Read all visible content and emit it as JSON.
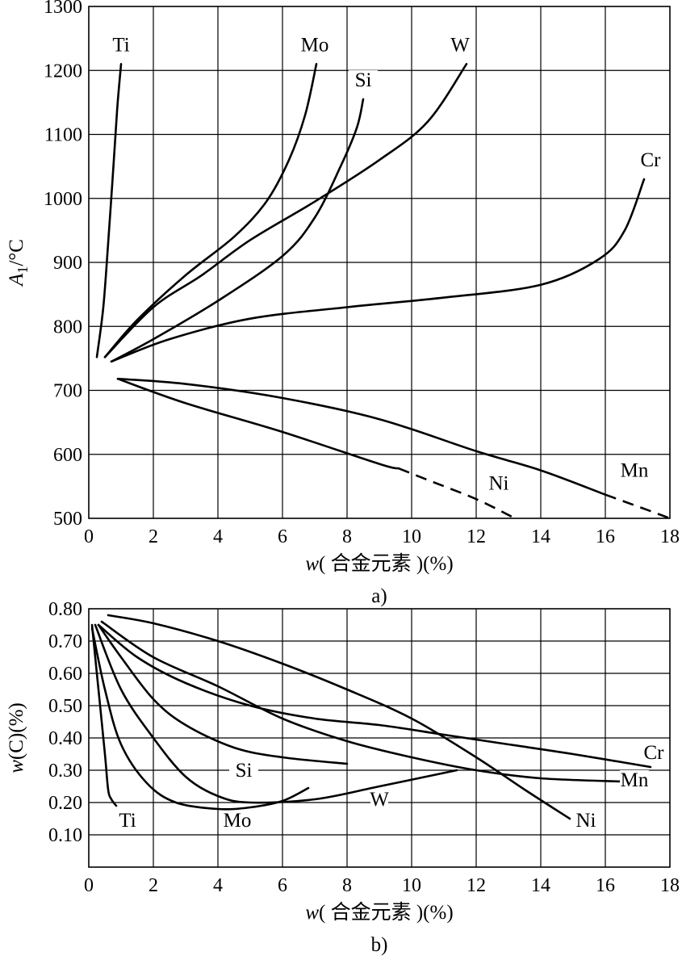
{
  "chart_data": [
    {
      "type": "line",
      "panel": "a)",
      "caption": "a)",
      "xlabel": "w( 合金元素 )(%)",
      "xlabel_var": "w",
      "xlabel_text": "( 合金元素 )(%)",
      "ylabel": "A1/°C",
      "ylabel_var": "A",
      "ylabel_sub": "1",
      "ylabel_unit": "/°C",
      "xlim": [
        0,
        18
      ],
      "ylim": [
        500,
        1300
      ],
      "x_ticks": [
        0,
        2,
        4,
        6,
        8,
        10,
        12,
        14,
        16,
        18
      ],
      "y_ticks": [
        500,
        600,
        700,
        800,
        900,
        1000,
        1100,
        1200,
        1300
      ],
      "grid": true,
      "series": [
        {
          "name": "Ti",
          "points": [
            [
              0.25,
              752
            ],
            [
              0.45,
              830
            ],
            [
              0.6,
              930
            ],
            [
              0.75,
              1040
            ],
            [
              0.88,
              1140
            ],
            [
              1.0,
              1210
            ]
          ]
        },
        {
          "name": "Mo",
          "points": [
            [
              0.5,
              752
            ],
            [
              1.5,
              810
            ],
            [
              3.0,
              880
            ],
            [
              4.5,
              940
            ],
            [
              5.5,
              995
            ],
            [
              6.2,
              1060
            ],
            [
              6.7,
              1130
            ],
            [
              7.05,
              1210
            ]
          ]
        },
        {
          "name": "Si",
          "points": [
            [
              0.7,
              745
            ],
            [
              2.0,
              780
            ],
            [
              4.0,
              840
            ],
            [
              6.0,
              910
            ],
            [
              7.0,
              970
            ],
            [
              7.8,
              1050
            ],
            [
              8.3,
              1110
            ],
            [
              8.5,
              1155
            ]
          ]
        },
        {
          "name": "W",
          "points": [
            [
              0.5,
              752
            ],
            [
              2.0,
              830
            ],
            [
              3.5,
              880
            ],
            [
              5.0,
              935
            ],
            [
              7.0,
              995
            ],
            [
              9.0,
              1060
            ],
            [
              10.5,
              1120
            ],
            [
              11.7,
              1210
            ]
          ]
        },
        {
          "name": "Cr",
          "points": [
            [
              0.7,
              745
            ],
            [
              2.5,
              780
            ],
            [
              5.0,
              812
            ],
            [
              8.0,
              830
            ],
            [
              11.0,
              845
            ],
            [
              14.0,
              865
            ],
            [
              15.8,
              905
            ],
            [
              16.6,
              950
            ],
            [
              17.2,
              1030
            ]
          ]
        },
        {
          "name": "Mn",
          "points": [
            [
              0.9,
              718
            ],
            [
              3.0,
              710
            ],
            [
              6.0,
              688
            ],
            [
              9.0,
              655
            ],
            [
              12.0,
              605
            ],
            [
              14.0,
              575
            ],
            [
              16.0,
              537
            ]
          ],
          "dashed_points": [
            [
              16.0,
              537
            ],
            [
              17.2,
              515
            ],
            [
              18.0,
              500
            ]
          ]
        },
        {
          "name": "Ni",
          "points": [
            [
              0.9,
              718
            ],
            [
              3.0,
              680
            ],
            [
              6.0,
              635
            ],
            [
              9.0,
              585
            ],
            [
              9.6,
              578
            ]
          ],
          "dashed_points": [
            [
              9.6,
              578
            ],
            [
              10.5,
              560
            ],
            [
              12.0,
              530
            ],
            [
              13.2,
              500
            ]
          ]
        }
      ],
      "annotations": [
        {
          "text": "Ti",
          "x": 1.0,
          "y": 1230
        },
        {
          "text": "Mo",
          "x": 7.0,
          "y": 1230
        },
        {
          "text": "Si",
          "x": 8.5,
          "y": 1175
        },
        {
          "text": "W",
          "x": 11.5,
          "y": 1230
        },
        {
          "text": "Cr",
          "x": 17.4,
          "y": 1050
        },
        {
          "text": "Ni",
          "x": 12.7,
          "y": 545
        },
        {
          "text": "Mn",
          "x": 16.9,
          "y": 565
        }
      ]
    },
    {
      "type": "line",
      "panel": "b)",
      "caption": "b)",
      "xlabel": "w( 合金元素 )(%)",
      "xlabel_var": "w",
      "xlabel_text": "( 合金元素 )(%)",
      "ylabel": "w(C)(%)",
      "ylabel_var": "w",
      "ylabel_text": "(C)(%)",
      "xlim": [
        0,
        18
      ],
      "ylim": [
        0,
        0.8
      ],
      "x_ticks": [
        0,
        2,
        4,
        6,
        8,
        10,
        12,
        14,
        16,
        18
      ],
      "y_ticks": [
        0.1,
        0.2,
        0.3,
        0.4,
        0.5,
        0.6,
        0.7,
        0.8
      ],
      "y_tick_labels": [
        "0.10",
        "0.20",
        "0.30",
        "0.40",
        "0.50",
        "0.60",
        "0.70",
        "0.80"
      ],
      "grid": true,
      "series": [
        {
          "name": "Ti",
          "points": [
            [
              0.1,
              0.75
            ],
            [
              0.3,
              0.55
            ],
            [
              0.5,
              0.35
            ],
            [
              0.6,
              0.24
            ],
            [
              0.7,
              0.21
            ],
            [
              0.85,
              0.19
            ]
          ]
        },
        {
          "name": "Mo",
          "points": [
            [
              0.1,
              0.74
            ],
            [
              0.5,
              0.55
            ],
            [
              1.0,
              0.38
            ],
            [
              1.8,
              0.26
            ],
            [
              2.7,
              0.2
            ],
            [
              4.0,
              0.18
            ],
            [
              5.0,
              0.185
            ],
            [
              6.0,
              0.205
            ],
            [
              6.8,
              0.245
            ]
          ]
        },
        {
          "name": "W",
          "points": [
            [
              0.2,
              0.75
            ],
            [
              1.0,
              0.55
            ],
            [
              2.0,
              0.4
            ],
            [
              3.0,
              0.28
            ],
            [
              4.0,
              0.22
            ],
            [
              5.0,
              0.2
            ],
            [
              7.0,
              0.21
            ],
            [
              9.0,
              0.25
            ],
            [
              11.4,
              0.3
            ]
          ]
        },
        {
          "name": "Si",
          "points": [
            [
              0.3,
              0.75
            ],
            [
              1.0,
              0.65
            ],
            [
              2.0,
              0.52
            ],
            [
              3.0,
              0.44
            ],
            [
              4.5,
              0.37
            ],
            [
              6.0,
              0.34
            ],
            [
              8.0,
              0.32
            ]
          ]
        },
        {
          "name": "Mn",
          "points": [
            [
              0.4,
              0.76
            ],
            [
              2.0,
              0.65
            ],
            [
              4.0,
              0.56
            ],
            [
              6.0,
              0.46
            ],
            [
              8.0,
              0.39
            ],
            [
              10.0,
              0.34
            ],
            [
              12.0,
              0.3
            ],
            [
              14.0,
              0.275
            ],
            [
              16.5,
              0.265
            ]
          ]
        },
        {
          "name": "Cr",
          "points": [
            [
              0.3,
              0.75
            ],
            [
              1.5,
              0.65
            ],
            [
              3.0,
              0.57
            ],
            [
              5.0,
              0.5
            ],
            [
              7.0,
              0.46
            ],
            [
              9.0,
              0.44
            ],
            [
              11.0,
              0.41
            ],
            [
              13.0,
              0.38
            ],
            [
              15.0,
              0.35
            ],
            [
              17.4,
              0.31
            ]
          ]
        },
        {
          "name": "Ni",
          "points": [
            [
              0.6,
              0.78
            ],
            [
              2.0,
              0.755
            ],
            [
              4.0,
              0.7
            ],
            [
              6.0,
              0.63
            ],
            [
              8.0,
              0.55
            ],
            [
              10.0,
              0.46
            ],
            [
              12.0,
              0.34
            ],
            [
              13.5,
              0.24
            ],
            [
              14.9,
              0.15
            ]
          ]
        }
      ],
      "annotations": [
        {
          "text": "Ti",
          "x": 1.2,
          "y": 0.125
        },
        {
          "text": "Mo",
          "x": 4.6,
          "y": 0.125
        },
        {
          "text": "W",
          "x": 9.0,
          "y": 0.19
        },
        {
          "text": "Si",
          "x": 4.8,
          "y": 0.28
        },
        {
          "text": "Mn",
          "x": 16.9,
          "y": 0.25
        },
        {
          "text": "Cr",
          "x": 17.5,
          "y": 0.335
        },
        {
          "text": "Ni",
          "x": 15.4,
          "y": 0.125
        }
      ]
    }
  ]
}
